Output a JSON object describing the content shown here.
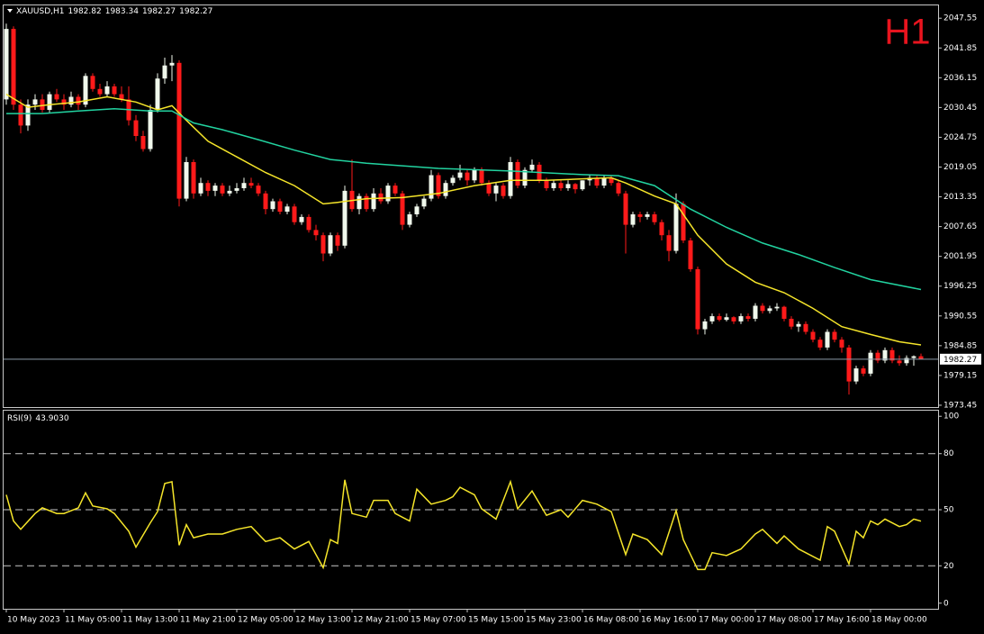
{
  "chart_data": [
    {
      "type": "candlestick",
      "title": "XAUUSD,H1",
      "badge": "H1",
      "ylim": [
        1973.1,
        2050.0
      ],
      "yticks": [
        2047.55,
        2041.85,
        2036.15,
        2030.45,
        2024.75,
        2019.05,
        2013.35,
        2007.65,
        2001.95,
        1996.25,
        1990.55,
        1984.85,
        1979.15,
        1973.45
      ],
      "up_color": "#f0f8ec",
      "down_color": "#ff1a1a",
      "categories": [
        "10 May 2023",
        null,
        null,
        null,
        null,
        null,
        null,
        null,
        "11 May 05:00",
        null,
        null,
        null,
        null,
        null,
        null,
        null,
        "11 May 13:00",
        null,
        null,
        null,
        null,
        null,
        null,
        null,
        "11 May 21:00",
        null,
        null,
        null,
        null,
        null,
        null,
        null,
        "12 May 05:00",
        null,
        null,
        null,
        null,
        null,
        null,
        null,
        "12 May 13:00",
        null,
        null,
        null,
        null,
        null,
        null,
        null,
        "12 May 21:00",
        null,
        null,
        null,
        null,
        null,
        null,
        null,
        "15 May 07:00",
        null,
        null,
        null,
        null,
        null,
        null,
        null,
        "15 May 15:00",
        null,
        null,
        null,
        null,
        null,
        null,
        null,
        "15 May 23:00",
        null,
        null,
        null,
        null,
        null,
        null,
        null,
        "16 May 08:00",
        null,
        null,
        null,
        null,
        null,
        null,
        null,
        "16 May 16:00",
        null,
        null,
        null,
        null,
        null,
        null,
        null,
        "17 May 00:00",
        null,
        null,
        null,
        null,
        null,
        null,
        null,
        "17 May 08:00",
        null,
        null,
        null,
        null,
        null,
        null,
        null,
        "17 May 16:00",
        null,
        null,
        null,
        null,
        null,
        null,
        null,
        "18 May 00:00",
        null,
        null,
        null,
        null,
        null,
        null,
        null
      ],
      "candles": [
        [
          2032,
          2046.5,
          2031,
          2045.5
        ],
        [
          2045.5,
          2046,
          2030,
          2031
        ],
        [
          2031,
          2032,
          2025.5,
          2027
        ],
        [
          2027,
          2032,
          2026,
          2031
        ],
        [
          2031,
          2033,
          2030,
          2032
        ],
        [
          2032,
          2033,
          2029.5,
          2030
        ],
        [
          2030,
          2033.5,
          2029.5,
          2033
        ],
        [
          2033,
          2034,
          2031.5,
          2032
        ],
        [
          2032,
          2033,
          2030,
          2031
        ],
        [
          2031,
          2033.5,
          2030.5,
          2032.5
        ],
        [
          2032.5,
          2033,
          2030,
          2031
        ],
        [
          2031,
          2037,
          2030.5,
          2036.5
        ],
        [
          2036.5,
          2037,
          2033.5,
          2034
        ],
        [
          2034,
          2035,
          2032.5,
          2033
        ],
        [
          2033,
          2035.5,
          2032.5,
          2034.5
        ],
        [
          2034.5,
          2035,
          2032.5,
          2033
        ],
        [
          2033,
          2034.5,
          2031.5,
          2032
        ],
        [
          2032,
          2034.5,
          2027,
          2028
        ],
        [
          2028,
          2029,
          2024,
          2025
        ],
        [
          2025,
          2026,
          2022,
          2022.5
        ],
        [
          2022.5,
          2031,
          2022,
          2030
        ],
        [
          2030,
          2037,
          2029.5,
          2036
        ],
        [
          2036,
          2040,
          2035,
          2038.5
        ],
        [
          2038.5,
          2040.5,
          2035.5,
          2039
        ],
        [
          2039,
          2039.5,
          2011.5,
          2013
        ],
        [
          2013,
          2021,
          2012.5,
          2020
        ],
        [
          2020,
          2020.5,
          2013,
          2014
        ],
        [
          2014,
          2017,
          2013.5,
          2016
        ],
        [
          2016,
          2016.5,
          2013.5,
          2014.5
        ],
        [
          2014.5,
          2016,
          2013.5,
          2015.5
        ],
        [
          2015.5,
          2016,
          2013.5,
          2014
        ],
        [
          2014,
          2015.5,
          2013.5,
          2014.5
        ],
        [
          2014.5,
          2016,
          2014,
          2015
        ],
        [
          2015,
          2017,
          2014.5,
          2016
        ],
        [
          2016,
          2017,
          2015,
          2015.5
        ],
        [
          2015.5,
          2016,
          2013.5,
          2014
        ],
        [
          2014,
          2014.5,
          2010,
          2011
        ],
        [
          2011,
          2013,
          2010.5,
          2012.5
        ],
        [
          2012.5,
          2013,
          2010,
          2010.5
        ],
        [
          2010.5,
          2012,
          2010,
          2011.5
        ],
        [
          2011.5,
          2012,
          2008,
          2008.5
        ],
        [
          2008.5,
          2010,
          2008,
          2009.5
        ],
        [
          2009.5,
          2010,
          2006.5,
          2007
        ],
        [
          2007,
          2008,
          2005,
          2006
        ],
        [
          2006,
          2006.5,
          2001,
          2002.5
        ],
        [
          2002.5,
          2006.5,
          2002,
          2006
        ],
        [
          2006,
          2006.5,
          2003,
          2004
        ],
        [
          2004,
          2015.5,
          2003.5,
          2014.5
        ],
        [
          2014.5,
          2020.5,
          2010.5,
          2011
        ],
        [
          2011,
          2014,
          2010,
          2013.5
        ],
        [
          2013.5,
          2014,
          2010.5,
          2011
        ],
        [
          2011,
          2015,
          2010.5,
          2014
        ],
        [
          2014,
          2015,
          2012,
          2012.5
        ],
        [
          2012.5,
          2016,
          2012,
          2015.5
        ],
        [
          2015.5,
          2016,
          2013.5,
          2014
        ],
        [
          2014,
          2014.5,
          2007,
          2008
        ],
        [
          2008,
          2010.5,
          2007.5,
          2010
        ],
        [
          2010,
          2012,
          2009.5,
          2011.5
        ],
        [
          2011.5,
          2013.5,
          2011,
          2013
        ],
        [
          2013,
          2018.5,
          2012.5,
          2017.5
        ],
        [
          2017.5,
          2018,
          2013,
          2013.5
        ],
        [
          2013.5,
          2016.5,
          2013,
          2016
        ],
        [
          2016,
          2017.5,
          2015.5,
          2017
        ],
        [
          2017,
          2019.5,
          2016.5,
          2018
        ],
        [
          2018,
          2018.5,
          2015.5,
          2016.5
        ],
        [
          2016.5,
          2019,
          2016,
          2018.5
        ],
        [
          2018.5,
          2019,
          2015.5,
          2016
        ],
        [
          2016,
          2016.5,
          2013.5,
          2014
        ],
        [
          2014,
          2016,
          2012.5,
          2015.5
        ],
        [
          2015.5,
          2016,
          2013,
          2013.5
        ],
        [
          2013.5,
          2021,
          2013,
          2020
        ],
        [
          2020,
          2020.5,
          2015,
          2015.5
        ],
        [
          2015.5,
          2019,
          2015,
          2018.5
        ],
        [
          2018.5,
          2020.5,
          2018,
          2019.5
        ],
        [
          2019.5,
          2020,
          2016,
          2016.5
        ],
        [
          2016.5,
          2017,
          2014.5,
          2015
        ],
        [
          2015,
          2016.5,
          2014.5,
          2016
        ],
        [
          2016,
          2016.5,
          2014.5,
          2015
        ],
        [
          2015,
          2016.5,
          2014.5,
          2015.8
        ],
        [
          2015.8,
          2016,
          2014,
          2014.8
        ],
        [
          2014.8,
          2016.5,
          2014.5,
          2016.5
        ],
        [
          2016.5,
          2017.5,
          2015.5,
          2017
        ],
        [
          2017,
          2017.5,
          2015,
          2015.5
        ],
        [
          2015.5,
          2017.5,
          2015,
          2017
        ],
        [
          2017,
          2017.5,
          2015.5,
          2016
        ],
        [
          2016,
          2016.5,
          2013.5,
          2014
        ],
        [
          2014,
          2014.5,
          2002.5,
          2008
        ],
        [
          2008,
          2010.5,
          2007.5,
          2010
        ],
        [
          2010,
          2010.5,
          2008.5,
          2009.5
        ],
        [
          2009.5,
          2010.5,
          2009,
          2010
        ],
        [
          2010,
          2010.5,
          2008,
          2008.5
        ],
        [
          2008.5,
          2009,
          2005,
          2006
        ],
        [
          2006,
          2007,
          2001,
          2003
        ],
        [
          2003,
          2014,
          2002.5,
          2012
        ],
        [
          2012,
          2012.5,
          2004.5,
          2005
        ],
        [
          2005,
          2005.5,
          1999,
          1999.5
        ],
        [
          1999.5,
          2000,
          1987,
          1988
        ],
        [
          1988,
          1990,
          1987,
          1989.5
        ],
        [
          1989.5,
          1991,
          1989,
          1990.5
        ],
        [
          1990.5,
          1991,
          1989.5,
          1989.8
        ],
        [
          1989.8,
          1991,
          1989.5,
          1990.3
        ],
        [
          1990.3,
          1990.5,
          1989,
          1989.5
        ],
        [
          1989.5,
          1991,
          1989,
          1990.5
        ],
        [
          1990.5,
          1991,
          1989.5,
          1990
        ],
        [
          1990,
          1993,
          1989.5,
          1992.5
        ],
        [
          1992.5,
          1993,
          1991,
          1991.5
        ],
        [
          1991.5,
          1992.5,
          1991,
          1992
        ],
        [
          1992,
          1993,
          1991.5,
          1992.3
        ],
        [
          1992.3,
          1992.5,
          1989.5,
          1990
        ],
        [
          1990,
          1990.5,
          1988,
          1988.5
        ],
        [
          1988.5,
          1989.5,
          1987.5,
          1989
        ],
        [
          1989,
          1989.5,
          1987,
          1987.5
        ],
        [
          1987.5,
          1988,
          1985.5,
          1986
        ],
        [
          1986,
          1986.5,
          1984,
          1984.5
        ],
        [
          1984.5,
          1988,
          1984,
          1987.5
        ],
        [
          1987.5,
          1988,
          1985.5,
          1986
        ],
        [
          1986,
          1986.5,
          1983.5,
          1984.5
        ],
        [
          1984.5,
          1985,
          1975.5,
          1978
        ],
        [
          1978,
          1981,
          1977.5,
          1980.5
        ],
        [
          1980.5,
          1981,
          1979,
          1979.5
        ],
        [
          1979.5,
          1984,
          1979,
          1983.5
        ],
        [
          1983.5,
          1984,
          1981.5,
          1982
        ],
        [
          1982,
          1984.5,
          1981.5,
          1984
        ],
        [
          1984,
          1984.5,
          1981.5,
          1982
        ],
        [
          1982,
          1983,
          1981,
          1981.5
        ],
        [
          1981.5,
          1983,
          1981,
          1982.5
        ],
        [
          1982.5,
          1983,
          1981,
          1982.82
        ],
        [
          1982.82,
          1983.34,
          1982.27,
          1982.27
        ]
      ],
      "series": [
        {
          "color": "#f5e52a",
          "x": [
            0,
            3,
            6,
            10,
            14,
            18,
            21,
            23,
            25,
            28,
            32,
            36,
            40,
            44,
            46,
            50,
            55,
            60,
            65,
            70,
            75,
            80,
            84,
            86,
            90,
            93,
            96,
            100,
            104,
            108,
            112,
            116,
            120,
            124,
            127
          ],
          "values": [
            2033,
            2030.5,
            2031,
            2031.5,
            2032.5,
            2031.5,
            2030,
            2030.8,
            2028,
            2024,
            2021,
            2018,
            2015.5,
            2012,
            2012.3,
            2013,
            2013.2,
            2014,
            2015.5,
            2016.5,
            2016.5,
            2016.8,
            2017,
            2016,
            2013.5,
            2012,
            2006,
            2000.5,
            1997,
            1995,
            1992,
            1988.5,
            1987,
            1985.6,
            1985
          ]
        },
        {
          "color": "#22d3a0",
          "x": [
            0,
            5,
            10,
            15,
            20,
            23,
            26,
            30,
            35,
            40,
            45,
            50,
            55,
            60,
            70,
            80,
            85,
            90,
            95,
            100,
            105,
            110,
            115,
            120,
            127
          ],
          "values": [
            2029.3,
            2029.3,
            2029.8,
            2030.2,
            2029.8,
            2029.8,
            2027.5,
            2026.2,
            2024.3,
            2022.3,
            2020.5,
            2019.8,
            2019.3,
            2018.8,
            2018.3,
            2017.6,
            2017.4,
            2015.5,
            2011,
            2007.5,
            2004.5,
            2002.3,
            1999.8,
            1997.5,
            1995.6
          ]
        }
      ]
    },
    {
      "type": "line",
      "title": "RSI(9)",
      "readout": {
        "value": 43.903,
        "label": "43.9030"
      },
      "ylim": [
        -3,
        103
      ],
      "yticks": [
        100,
        80,
        50,
        20,
        0
      ],
      "series": [
        {
          "color": "#f5e52a",
          "x": [
            0,
            1,
            2,
            4,
            5,
            7,
            8,
            10,
            11,
            12,
            14,
            15,
            17,
            18,
            20,
            21,
            22,
            23,
            24,
            25,
            26,
            28,
            30,
            32,
            34,
            36,
            38,
            39,
            40,
            42,
            44,
            45,
            46,
            47,
            48,
            50,
            51,
            53,
            54,
            56,
            57,
            59,
            61,
            62,
            63,
            65,
            66,
            68,
            70,
            71,
            73,
            75,
            77,
            78,
            80,
            82,
            84,
            86,
            87,
            89,
            91,
            93,
            94,
            96,
            97,
            98,
            100,
            102,
            104,
            105,
            107,
            108,
            110,
            113,
            114,
            115,
            117,
            118,
            119,
            120,
            121,
            122,
            124,
            125,
            126,
            127
          ],
          "values": [
            58,
            44,
            39.5,
            48,
            51,
            48,
            48,
            51,
            59,
            52,
            50.5,
            48,
            38.5,
            30,
            43,
            49,
            64,
            65,
            31,
            42,
            35,
            37,
            37,
            39.5,
            41,
            33,
            35,
            32,
            29,
            33,
            19,
            34,
            32,
            66,
            48,
            46,
            55,
            55,
            48,
            44,
            61,
            53,
            55,
            57,
            62,
            58,
            50.5,
            45,
            65,
            50.5,
            60,
            47,
            50,
            46,
            55,
            53,
            49,
            26,
            37,
            34,
            26,
            49.5,
            34,
            18,
            18,
            27,
            25.5,
            29,
            37,
            39.5,
            32,
            36,
            29,
            23,
            41,
            38.5,
            21,
            38.5,
            35,
            44,
            42,
            45,
            41,
            42,
            45,
            43.903
          ]
        }
      ]
    }
  ]
}
